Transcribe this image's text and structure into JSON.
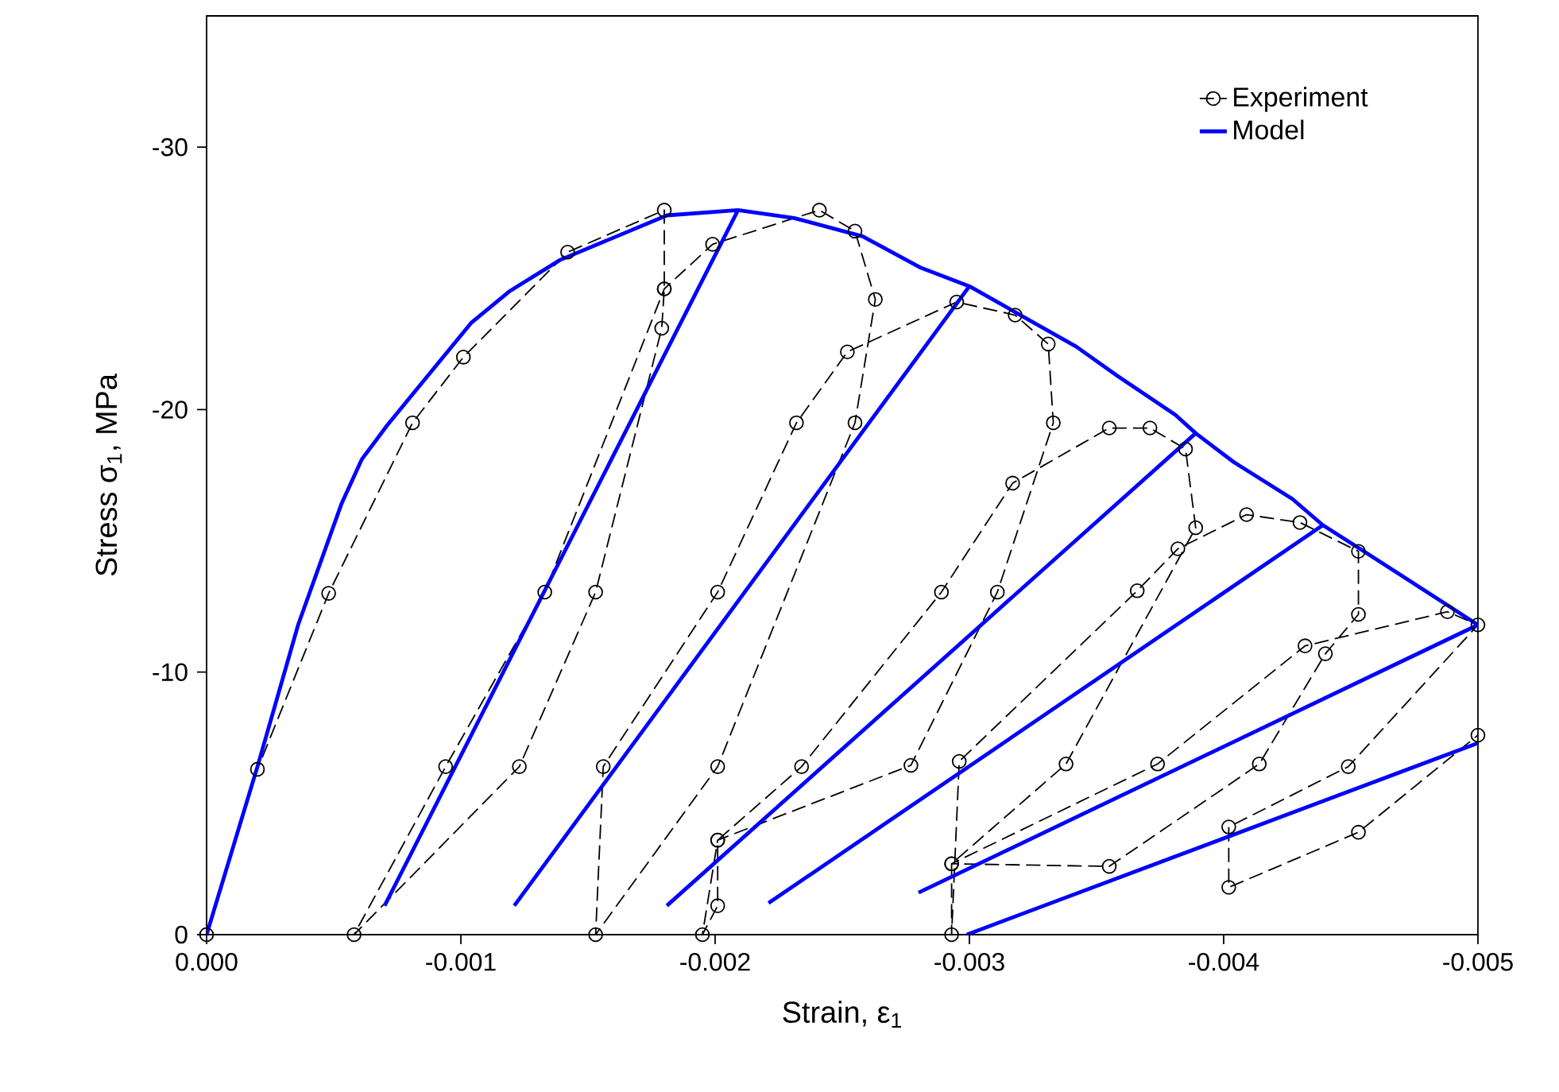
{
  "chart_data": {
    "type": "line",
    "xlabel": "Strain, ε$_{1}$",
    "ylabel": "Stress σ$_{1}$,  MPa",
    "xlim": [
      0,
      -0.005
    ],
    "ylim": [
      0,
      -35
    ],
    "xticks": [
      {
        "value": 0,
        "label": "0.000"
      },
      {
        "value": -0.001,
        "label": "-0.001"
      },
      {
        "value": -0.002,
        "label": "-0.002"
      },
      {
        "value": -0.003,
        "label": "-0.003"
      },
      {
        "value": -0.004,
        "label": "-0.004"
      },
      {
        "value": -0.005,
        "label": "-0.005"
      }
    ],
    "yticks": [
      0,
      -10,
      -20,
      -30
    ],
    "grid": false,
    "legend": "top right",
    "series": [
      {
        "name": "Experiment",
        "color": "#000000",
        "line_style": "dashed",
        "marker": "circle",
        "x": [
          0,
          -0.0002,
          -0.00048,
          -0.00081,
          -0.00101,
          -0.00142,
          -0.0018,
          -0.0018,
          -0.00179,
          -0.00153,
          -0.00123,
          -0.00058,
          -0.00094,
          -0.00133,
          -0.0018,
          -0.00199,
          -0.00241,
          -0.00255,
          -0.00263,
          -0.00255,
          -0.00201,
          -0.00153,
          -0.00156,
          -0.00201,
          -0.00232,
          -0.00252,
          -0.00295,
          -0.00318,
          -0.00331,
          -0.00333,
          -0.00311,
          -0.00277,
          -0.00201,
          -0.00195,
          -0.00201,
          -0.00201,
          -0.00234,
          -0.00289,
          -0.00317,
          -0.00355,
          -0.00371,
          -0.00385,
          -0.00389,
          -0.00338,
          -0.00293,
          -0.00293,
          -0.00296,
          -0.00366,
          -0.00382,
          -0.00409,
          -0.0043,
          -0.00453,
          -0.00453,
          -0.0044,
          -0.00414,
          -0.00355,
          -0.00293,
          -0.00374,
          -0.00432,
          -0.00488,
          -0.005,
          -0.00449,
          -0.00402,
          -0.00402,
          -0.00453,
          -0.005
        ],
        "values": [
          0,
          -6.3,
          -13,
          -19.5,
          -22,
          -26,
          -27.6,
          -24.6,
          -23.1,
          -13.05,
          -6.4,
          0,
          -6.4,
          -13.05,
          -24.6,
          -26.3,
          -27.6,
          -26.8,
          -24.2,
          -19.5,
          -6.4,
          0,
          -6.4,
          -13.05,
          -19.5,
          -22.2,
          -24.1,
          -23.6,
          -22.5,
          -19.5,
          -13.05,
          -6.45,
          -3.6,
          0,
          -1.1,
          -3.6,
          -6.4,
          -13.05,
          -17.2,
          -19.3,
          -19.3,
          -18.5,
          -15.5,
          -6.5,
          -2.7,
          0,
          -6.6,
          -13.1,
          -14.7,
          -16,
          -15.7,
          -14.6,
          -12.2,
          -10.7,
          -6.5,
          -2.6,
          -2.7,
          -6.5,
          -11,
          -12.3,
          -11.8,
          -6.4,
          -4.1,
          -1.8,
          -3.9,
          -7.6
        ]
      },
      {
        "name": "Model",
        "color": "#0000ff",
        "line_style": "solid",
        "marker": "none",
        "x": [
          0,
          -0.0002,
          -0.00036,
          -0.00053,
          -0.00061,
          -0.00071,
          -0.00104,
          -0.00119,
          -0.00139,
          -0.00181,
          -0.00209,
          -0.00231,
          -0.00258,
          -0.00281,
          -0.003,
          -0.00342,
          -0.00358,
          -0.00381,
          -0.00389,
          -0.00404,
          -0.00427,
          -0.00439,
          -0.00452,
          -0.005,
          null,
          -0.00209,
          -0.0007,
          null,
          -0.003,
          -0.00121,
          null,
          -0.00389,
          -0.00181,
          null,
          -0.00439,
          -0.00221,
          null,
          -0.005,
          -0.0028,
          null,
          -0.005,
          -0.00299
        ],
        "values": [
          0,
          -6.4,
          -11.8,
          -16.4,
          -18.1,
          -19.4,
          -23.3,
          -24.5,
          -25.7,
          -27.4,
          -27.6,
          -27.3,
          -26.6,
          -25.4,
          -24.7,
          -22.4,
          -21.3,
          -19.8,
          -19.1,
          -18,
          -16.6,
          -15.6,
          -14.8,
          -11.8,
          null,
          -27.6,
          -1.1,
          null,
          -24.7,
          -1.1,
          null,
          -19.1,
          -1.1,
          null,
          -15.6,
          -1.2,
          null,
          -11.8,
          -1.6,
          null,
          -7.3,
          0
        ]
      }
    ]
  }
}
